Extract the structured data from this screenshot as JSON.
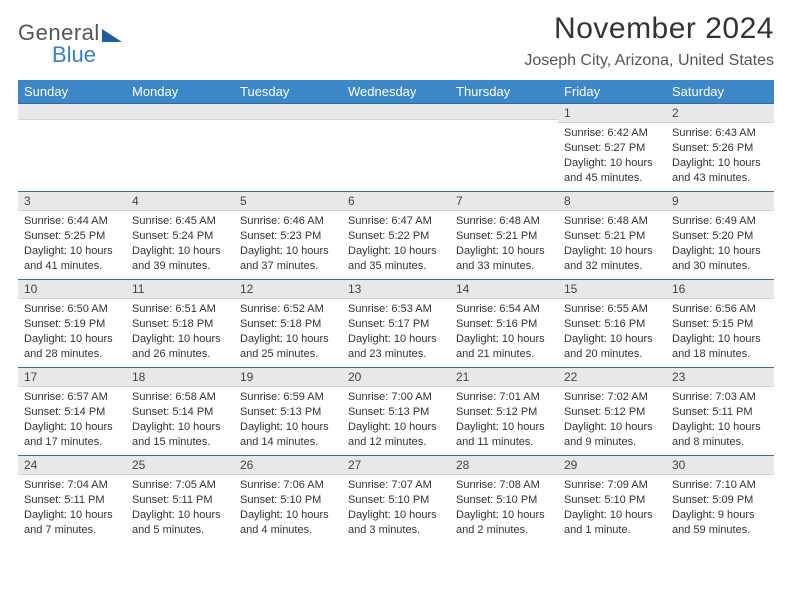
{
  "brand": {
    "line1": "General",
    "line2": "Blue",
    "triangle_color": "#1f5e9e"
  },
  "title": "November 2024",
  "location": "Joseph City, Arizona, United States",
  "colors": {
    "header_bg": "#3b87c8",
    "header_text": "#ffffff",
    "row_border": "#2f6da0",
    "daynum_bg": "#e7e8ea",
    "body_text": "#333333"
  },
  "weekday_labels": [
    "Sunday",
    "Monday",
    "Tuesday",
    "Wednesday",
    "Thursday",
    "Friday",
    "Saturday"
  ],
  "weeks": [
    [
      {
        "n": "",
        "sunrise": "",
        "sunset": "",
        "daylight": ""
      },
      {
        "n": "",
        "sunrise": "",
        "sunset": "",
        "daylight": ""
      },
      {
        "n": "",
        "sunrise": "",
        "sunset": "",
        "daylight": ""
      },
      {
        "n": "",
        "sunrise": "",
        "sunset": "",
        "daylight": ""
      },
      {
        "n": "",
        "sunrise": "",
        "sunset": "",
        "daylight": ""
      },
      {
        "n": "1",
        "sunrise": "Sunrise: 6:42 AM",
        "sunset": "Sunset: 5:27 PM",
        "daylight": "Daylight: 10 hours and 45 minutes."
      },
      {
        "n": "2",
        "sunrise": "Sunrise: 6:43 AM",
        "sunset": "Sunset: 5:26 PM",
        "daylight": "Daylight: 10 hours and 43 minutes."
      }
    ],
    [
      {
        "n": "3",
        "sunrise": "Sunrise: 6:44 AM",
        "sunset": "Sunset: 5:25 PM",
        "daylight": "Daylight: 10 hours and 41 minutes."
      },
      {
        "n": "4",
        "sunrise": "Sunrise: 6:45 AM",
        "sunset": "Sunset: 5:24 PM",
        "daylight": "Daylight: 10 hours and 39 minutes."
      },
      {
        "n": "5",
        "sunrise": "Sunrise: 6:46 AM",
        "sunset": "Sunset: 5:23 PM",
        "daylight": "Daylight: 10 hours and 37 minutes."
      },
      {
        "n": "6",
        "sunrise": "Sunrise: 6:47 AM",
        "sunset": "Sunset: 5:22 PM",
        "daylight": "Daylight: 10 hours and 35 minutes."
      },
      {
        "n": "7",
        "sunrise": "Sunrise: 6:48 AM",
        "sunset": "Sunset: 5:21 PM",
        "daylight": "Daylight: 10 hours and 33 minutes."
      },
      {
        "n": "8",
        "sunrise": "Sunrise: 6:48 AM",
        "sunset": "Sunset: 5:21 PM",
        "daylight": "Daylight: 10 hours and 32 minutes."
      },
      {
        "n": "9",
        "sunrise": "Sunrise: 6:49 AM",
        "sunset": "Sunset: 5:20 PM",
        "daylight": "Daylight: 10 hours and 30 minutes."
      }
    ],
    [
      {
        "n": "10",
        "sunrise": "Sunrise: 6:50 AM",
        "sunset": "Sunset: 5:19 PM",
        "daylight": "Daylight: 10 hours and 28 minutes."
      },
      {
        "n": "11",
        "sunrise": "Sunrise: 6:51 AM",
        "sunset": "Sunset: 5:18 PM",
        "daylight": "Daylight: 10 hours and 26 minutes."
      },
      {
        "n": "12",
        "sunrise": "Sunrise: 6:52 AM",
        "sunset": "Sunset: 5:18 PM",
        "daylight": "Daylight: 10 hours and 25 minutes."
      },
      {
        "n": "13",
        "sunrise": "Sunrise: 6:53 AM",
        "sunset": "Sunset: 5:17 PM",
        "daylight": "Daylight: 10 hours and 23 minutes."
      },
      {
        "n": "14",
        "sunrise": "Sunrise: 6:54 AM",
        "sunset": "Sunset: 5:16 PM",
        "daylight": "Daylight: 10 hours and 21 minutes."
      },
      {
        "n": "15",
        "sunrise": "Sunrise: 6:55 AM",
        "sunset": "Sunset: 5:16 PM",
        "daylight": "Daylight: 10 hours and 20 minutes."
      },
      {
        "n": "16",
        "sunrise": "Sunrise: 6:56 AM",
        "sunset": "Sunset: 5:15 PM",
        "daylight": "Daylight: 10 hours and 18 minutes."
      }
    ],
    [
      {
        "n": "17",
        "sunrise": "Sunrise: 6:57 AM",
        "sunset": "Sunset: 5:14 PM",
        "daylight": "Daylight: 10 hours and 17 minutes."
      },
      {
        "n": "18",
        "sunrise": "Sunrise: 6:58 AM",
        "sunset": "Sunset: 5:14 PM",
        "daylight": "Daylight: 10 hours and 15 minutes."
      },
      {
        "n": "19",
        "sunrise": "Sunrise: 6:59 AM",
        "sunset": "Sunset: 5:13 PM",
        "daylight": "Daylight: 10 hours and 14 minutes."
      },
      {
        "n": "20",
        "sunrise": "Sunrise: 7:00 AM",
        "sunset": "Sunset: 5:13 PM",
        "daylight": "Daylight: 10 hours and 12 minutes."
      },
      {
        "n": "21",
        "sunrise": "Sunrise: 7:01 AM",
        "sunset": "Sunset: 5:12 PM",
        "daylight": "Daylight: 10 hours and 11 minutes."
      },
      {
        "n": "22",
        "sunrise": "Sunrise: 7:02 AM",
        "sunset": "Sunset: 5:12 PM",
        "daylight": "Daylight: 10 hours and 9 minutes."
      },
      {
        "n": "23",
        "sunrise": "Sunrise: 7:03 AM",
        "sunset": "Sunset: 5:11 PM",
        "daylight": "Daylight: 10 hours and 8 minutes."
      }
    ],
    [
      {
        "n": "24",
        "sunrise": "Sunrise: 7:04 AM",
        "sunset": "Sunset: 5:11 PM",
        "daylight": "Daylight: 10 hours and 7 minutes."
      },
      {
        "n": "25",
        "sunrise": "Sunrise: 7:05 AM",
        "sunset": "Sunset: 5:11 PM",
        "daylight": "Daylight: 10 hours and 5 minutes."
      },
      {
        "n": "26",
        "sunrise": "Sunrise: 7:06 AM",
        "sunset": "Sunset: 5:10 PM",
        "daylight": "Daylight: 10 hours and 4 minutes."
      },
      {
        "n": "27",
        "sunrise": "Sunrise: 7:07 AM",
        "sunset": "Sunset: 5:10 PM",
        "daylight": "Daylight: 10 hours and 3 minutes."
      },
      {
        "n": "28",
        "sunrise": "Sunrise: 7:08 AM",
        "sunset": "Sunset: 5:10 PM",
        "daylight": "Daylight: 10 hours and 2 minutes."
      },
      {
        "n": "29",
        "sunrise": "Sunrise: 7:09 AM",
        "sunset": "Sunset: 5:10 PM",
        "daylight": "Daylight: 10 hours and 1 minute."
      },
      {
        "n": "30",
        "sunrise": "Sunrise: 7:10 AM",
        "sunset": "Sunset: 5:09 PM",
        "daylight": "Daylight: 9 hours and 59 minutes."
      }
    ]
  ]
}
